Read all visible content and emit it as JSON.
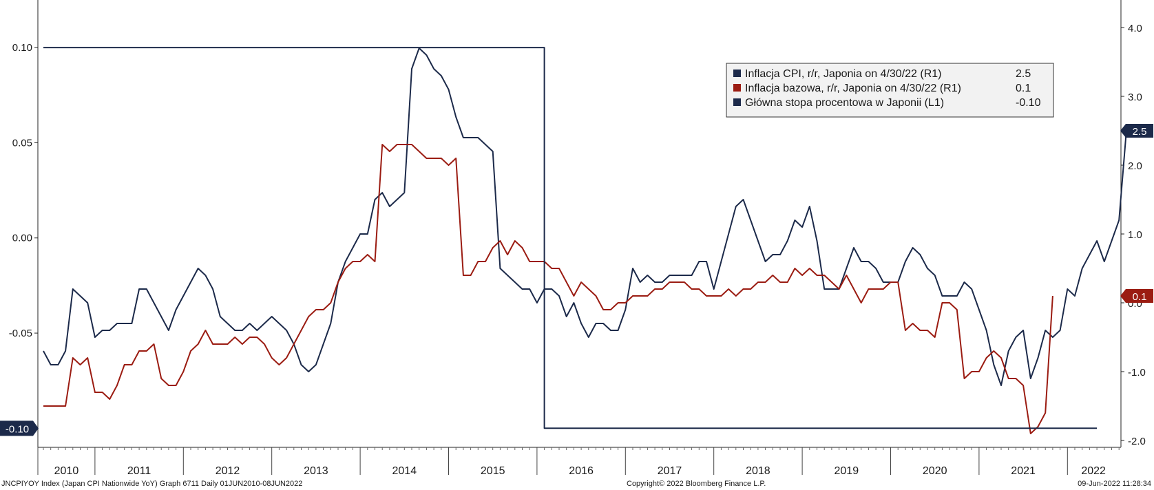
{
  "chart_data": {
    "type": "line",
    "x_start": "2010-06",
    "x_frequency": "monthly",
    "xticklabels": [
      "2010",
      "2011",
      "2012",
      "2013",
      "2014",
      "2015",
      "2016",
      "2017",
      "2018",
      "2019",
      "2020",
      "2021",
      "2022"
    ],
    "left_axis": {
      "ylim": [
        -0.11,
        0.125
      ],
      "ticks": [
        0.1,
        0.05,
        0.0,
        -0.05
      ],
      "tick_labels": [
        "0.10",
        "0.05",
        "0.00",
        "-0.05"
      ]
    },
    "right_axis": {
      "ylim": [
        -2.1,
        4.4
      ],
      "ticks": [
        4.0,
        3.0,
        2.0,
        1.0,
        0.0,
        -1.0,
        -2.0
      ],
      "tick_labels": [
        "4.0",
        "3.0",
        "2.0",
        "1.0",
        "0.0",
        "-1.0",
        "-2.0"
      ]
    },
    "legend": {
      "placement": "top-right",
      "entries": [
        {
          "label": "Inflacja CPI, r/r, Japonia on 4/30/22 (R1)",
          "value": "2.5",
          "color": "#1c2a4a"
        },
        {
          "label": "Inflacja bazowa, r/r, Japonia on 4/30/22 (R1)",
          "value": "0.1",
          "color": "#9b1c12"
        },
        {
          "label": "Główna stopa procentowa w Japonii (L1)",
          "value": "-0.10",
          "color": "#1c2a4a"
        }
      ]
    },
    "last_value_tags": {
      "cpi": "2.5",
      "core": "0.1",
      "rate": "-0.10"
    },
    "series": [
      {
        "name": "Inflacja CPI, r/r, Japonia on 4/30/22 (R1)",
        "axis": "right",
        "color": "#1c2a4a",
        "values": [
          -0.7,
          -0.9,
          -0.9,
          -0.7,
          0.2,
          0.1,
          0.0,
          -0.5,
          -0.4,
          -0.4,
          -0.3,
          -0.3,
          -0.3,
          0.2,
          0.2,
          0.0,
          -0.2,
          -0.4,
          -0.1,
          0.1,
          0.3,
          0.5,
          0.4,
          0.2,
          -0.2,
          -0.3,
          -0.4,
          -0.4,
          -0.3,
          -0.4,
          -0.3,
          -0.2,
          -0.3,
          -0.4,
          -0.6,
          -0.9,
          -1.0,
          -0.9,
          -0.6,
          -0.3,
          0.3,
          0.6,
          0.8,
          1.0,
          1.0,
          1.5,
          1.6,
          1.4,
          1.5,
          1.6,
          3.4,
          3.7,
          3.6,
          3.4,
          3.3,
          3.1,
          2.7,
          2.4,
          2.4,
          2.4,
          2.3,
          2.2,
          0.5,
          0.4,
          0.3,
          0.2,
          0.2,
          0.0,
          0.2,
          0.2,
          0.1,
          -0.2,
          0.0,
          -0.3,
          -0.5,
          -0.3,
          -0.3,
          -0.4,
          -0.4,
          -0.1,
          0.5,
          0.3,
          0.4,
          0.3,
          0.3,
          0.4,
          0.4,
          0.4,
          0.4,
          0.6,
          0.6,
          0.2,
          0.6,
          1.0,
          1.4,
          1.5,
          1.2,
          0.9,
          0.6,
          0.7,
          0.7,
          0.9,
          1.2,
          1.1,
          1.4,
          0.9,
          0.2,
          0.2,
          0.2,
          0.5,
          0.8,
          0.6,
          0.6,
          0.5,
          0.3,
          0.3,
          0.3,
          0.6,
          0.8,
          0.7,
          0.5,
          0.4,
          0.1,
          0.1,
          0.1,
          0.3,
          0.2,
          -0.1,
          -0.4,
          -0.9,
          -1.2,
          -0.7,
          -0.5,
          -0.4,
          -1.1,
          -0.8,
          -0.4,
          -0.5,
          -0.4,
          0.2,
          0.1,
          0.5,
          0.7,
          0.9,
          0.6,
          0.9,
          1.2,
          2.5
        ]
      },
      {
        "name": "Inflacja bazowa, r/r, Japonia on 4/30/22 (R1)",
        "axis": "right",
        "color": "#9b1c12",
        "values": [
          -1.5,
          -1.5,
          -1.5,
          -1.5,
          -0.8,
          -0.9,
          -0.8,
          -1.3,
          -1.3,
          -1.4,
          -1.2,
          -0.9,
          -0.9,
          -0.7,
          -0.7,
          -0.6,
          -1.1,
          -1.2,
          -1.2,
          -1.0,
          -0.7,
          -0.6,
          -0.4,
          -0.6,
          -0.6,
          -0.6,
          -0.5,
          -0.6,
          -0.5,
          -0.5,
          -0.6,
          -0.8,
          -0.9,
          -0.8,
          -0.6,
          -0.4,
          -0.2,
          -0.1,
          -0.1,
          0.0,
          0.3,
          0.5,
          0.6,
          0.6,
          0.7,
          0.6,
          2.3,
          2.2,
          2.3,
          2.3,
          2.3,
          2.2,
          2.1,
          2.1,
          2.1,
          2.0,
          2.1,
          0.4,
          0.4,
          0.6,
          0.6,
          0.8,
          0.9,
          0.7,
          0.9,
          0.8,
          0.6,
          0.6,
          0.6,
          0.5,
          0.5,
          0.3,
          0.1,
          0.3,
          0.2,
          0.1,
          -0.1,
          -0.1,
          0.0,
          0.0,
          0.1,
          0.1,
          0.1,
          0.2,
          0.2,
          0.3,
          0.3,
          0.3,
          0.2,
          0.2,
          0.1,
          0.1,
          0.1,
          0.2,
          0.1,
          0.2,
          0.2,
          0.3,
          0.3,
          0.4,
          0.3,
          0.3,
          0.5,
          0.4,
          0.5,
          0.4,
          0.4,
          0.3,
          0.2,
          0.4,
          0.2,
          0.0,
          0.2,
          0.2,
          0.2,
          0.3,
          0.3,
          -0.4,
          -0.3,
          -0.4,
          -0.4,
          -0.5,
          0.0,
          0.0,
          -0.1,
          -1.1,
          -1.0,
          -1.0,
          -0.8,
          -0.7,
          -0.8,
          -1.1,
          -1.1,
          -1.2,
          -1.9,
          -1.8,
          -1.6,
          0.1
        ]
      },
      {
        "name": "Główna stopa procentowa w Japonii (L1)",
        "axis": "left",
        "color": "#1c2a4a",
        "step": true,
        "points": [
          {
            "x": "2010-06",
            "y": 0.1
          },
          {
            "x": "2016-02",
            "y": 0.1
          },
          {
            "x": "2016-02",
            "y": -0.1
          },
          {
            "x": "2022-05",
            "y": -0.1
          }
        ]
      }
    ]
  },
  "footer": {
    "left": "JNCPIYOY Index (Japan CPI Nationwide YoY) Graph 6711  Daily 01JUN2010-08JUN2022",
    "center": "Copyright© 2022 Bloomberg Finance L.P.",
    "right": "09-Jun-2022 11:28:34"
  }
}
